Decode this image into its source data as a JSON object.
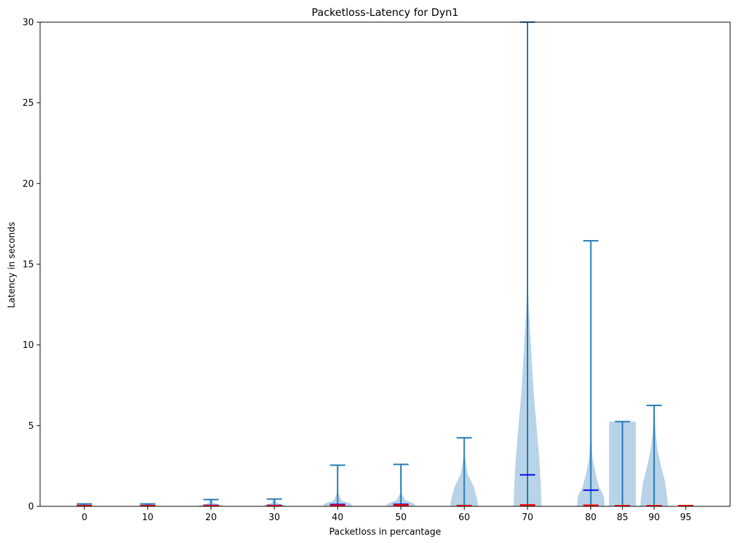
{
  "chart_data": {
    "type": "violin",
    "title": "Packetloss-Latency for Dyn1",
    "xlabel": "Packetloss in percantage",
    "ylabel": "Latency in seconds",
    "ylim": [
      0,
      30
    ],
    "yticks": [
      0,
      5,
      10,
      15,
      20,
      25,
      30
    ],
    "grid": false,
    "colors": {
      "body": "#b8d3e8",
      "extrema": "#1f77b4",
      "mean": "#0000ff",
      "median": "#ff0000"
    },
    "violins": [
      {
        "label": "0",
        "x": 0,
        "max": 0.15,
        "mean": 0.05,
        "median": 0.03,
        "width_profile": [
          [
            0,
            0.5
          ],
          [
            0.05,
            0.5
          ],
          [
            0.15,
            0.1
          ]
        ]
      },
      {
        "label": "10",
        "x": 10,
        "max": 0.15,
        "mean": 0.05,
        "median": 0.03,
        "width_profile": [
          [
            0,
            0.5
          ],
          [
            0.05,
            0.5
          ],
          [
            0.15,
            0.1
          ]
        ]
      },
      {
        "label": "20",
        "x": 20,
        "max": 0.42,
        "mean": 0.06,
        "median": 0.03,
        "width_profile": [
          [
            0,
            0.9
          ],
          [
            0.05,
            0.9
          ],
          [
            0.2,
            0.2
          ],
          [
            0.42,
            0.05
          ]
        ]
      },
      {
        "label": "30",
        "x": 30,
        "max": 0.45,
        "mean": 0.06,
        "median": 0.03,
        "width_profile": [
          [
            0,
            0.8
          ],
          [
            0.05,
            0.8
          ],
          [
            0.2,
            0.2
          ],
          [
            0.45,
            0.05
          ]
        ]
      },
      {
        "label": "40",
        "x": 40,
        "max": 2.55,
        "mean": 0.12,
        "median": 0.06,
        "width_profile": [
          [
            0,
            1.0
          ],
          [
            0.15,
            1.0
          ],
          [
            0.35,
            0.3
          ],
          [
            0.8,
            0.05
          ],
          [
            2.55,
            0.02
          ]
        ]
      },
      {
        "label": "50",
        "x": 50,
        "max": 2.6,
        "mean": 0.13,
        "median": 0.08,
        "width_profile": [
          [
            0,
            1.0
          ],
          [
            0.15,
            1.0
          ],
          [
            0.4,
            0.3
          ],
          [
            0.8,
            0.05
          ],
          [
            2.6,
            0.02
          ]
        ]
      },
      {
        "label": "60",
        "x": 60,
        "max": 4.25,
        "mean": 0.05,
        "median": 0.03,
        "width_profile": [
          [
            0,
            1.0
          ],
          [
            0.4,
            0.95
          ],
          [
            1.2,
            0.7
          ],
          [
            2.0,
            0.25
          ],
          [
            3.0,
            0.06
          ],
          [
            4.25,
            0.02
          ]
        ]
      },
      {
        "label": "70",
        "x": 70,
        "max": 30.0,
        "mean": 1.95,
        "median": 0.08,
        "width_profile": [
          [
            0,
            1.0
          ],
          [
            1.0,
            0.98
          ],
          [
            3.0,
            0.85
          ],
          [
            5.0,
            0.65
          ],
          [
            7.0,
            0.45
          ],
          [
            9.0,
            0.3
          ],
          [
            11.0,
            0.18
          ],
          [
            12.5,
            0.08
          ],
          [
            14.0,
            0.02
          ],
          [
            30.0,
            0.0
          ]
        ]
      },
      {
        "label": "80",
        "x": 80,
        "max": 16.45,
        "mean": 1.0,
        "median": 0.06,
        "width_profile": [
          [
            0,
            1.0
          ],
          [
            0.6,
            0.95
          ],
          [
            1.2,
            0.6
          ],
          [
            2.0,
            0.35
          ],
          [
            3.0,
            0.12
          ],
          [
            4.5,
            0.02
          ],
          [
            16.45,
            0.0
          ]
        ]
      },
      {
        "label": "85",
        "x": 85,
        "max": 5.25,
        "mean": 0.04,
        "median": 0.03,
        "width_profile": [
          [
            0,
            1.0
          ],
          [
            0.1,
            0.97
          ],
          [
            5.0,
            0.97
          ],
          [
            5.25,
            0.96
          ]
        ]
      },
      {
        "label": "90",
        "x": 90,
        "max": 6.25,
        "mean": 0.03,
        "median": 0.03,
        "width_profile": [
          [
            0,
            1.0
          ],
          [
            0.5,
            0.95
          ],
          [
            1.5,
            0.8
          ],
          [
            2.5,
            0.5
          ],
          [
            3.5,
            0.25
          ],
          [
            4.5,
            0.12
          ],
          [
            5.5,
            0.05
          ],
          [
            6.25,
            0.02
          ]
        ]
      },
      {
        "label": "95",
        "x": 95,
        "max": 0.05,
        "mean": 0.03,
        "median": 0.03,
        "width_profile": [
          [
            0,
            0.3
          ],
          [
            0.05,
            0.2
          ]
        ]
      }
    ]
  }
}
